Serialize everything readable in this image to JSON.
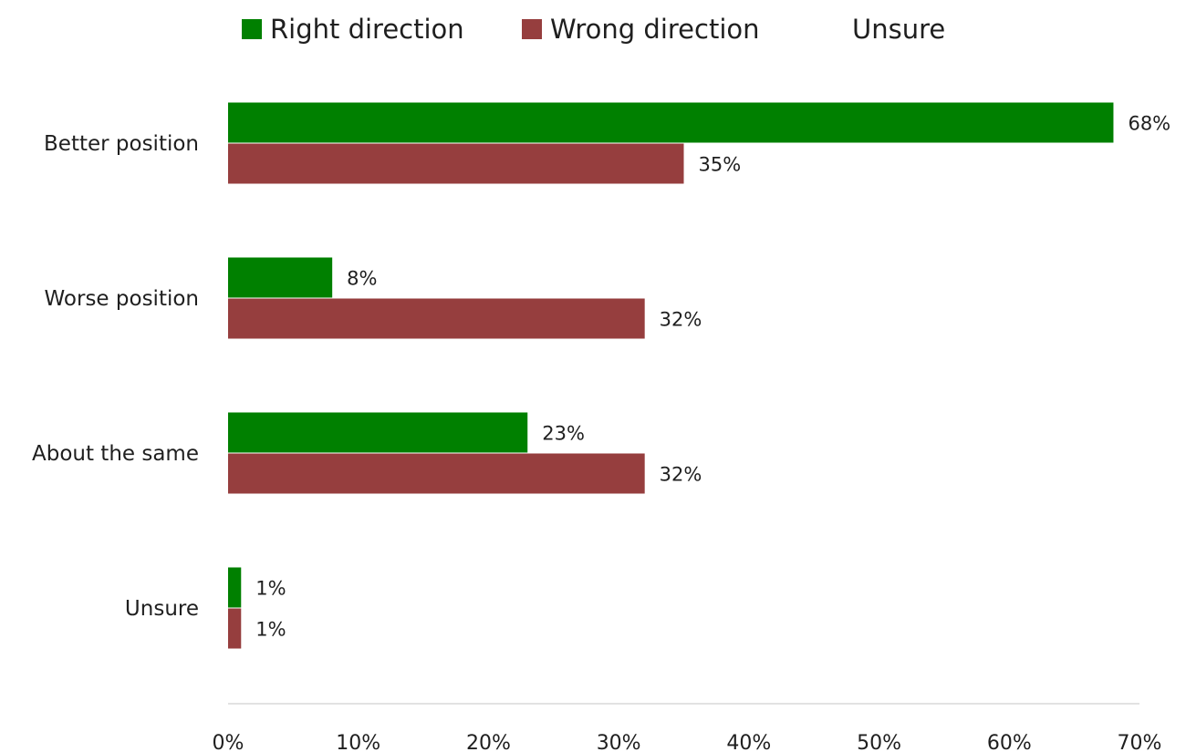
{
  "chart_data": {
    "type": "bar",
    "orientation": "horizontal",
    "title": "",
    "xlabel": "",
    "ylabel": "",
    "categories": [
      "Better position",
      "Worse position",
      "About the same",
      "Unsure"
    ],
    "series": [
      {
        "name": "Right direction",
        "color": "#008000",
        "values": [
          68,
          8,
          23,
          1
        ],
        "labels": [
          "68%",
          "8%",
          "23%",
          "1%"
        ]
      },
      {
        "name": "Wrong direction",
        "color": "#963e3e",
        "values": [
          35,
          32,
          32,
          1
        ],
        "labels": [
          "35%",
          "32%",
          "32%",
          "1%"
        ]
      },
      {
        "name": "Unsure",
        "color": "#ffffff",
        "values": [
          0,
          0,
          0,
          0
        ],
        "labels": []
      }
    ],
    "xlim": [
      0,
      70
    ],
    "xticks": [
      0,
      10,
      20,
      30,
      40,
      50,
      60,
      70
    ],
    "xtick_labels": [
      "0%",
      "10%",
      "20%",
      "30%",
      "40%",
      "50%",
      "60%",
      "70%"
    ],
    "grid": false,
    "legend_position": "top"
  }
}
